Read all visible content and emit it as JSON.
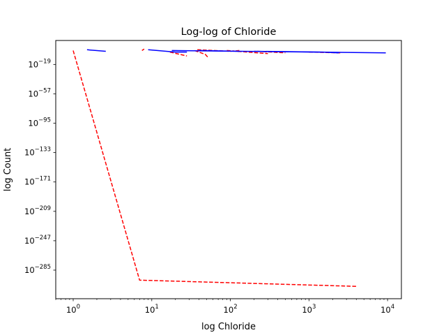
{
  "chart_data": {
    "type": "line",
    "title": "Log-log of Chloride",
    "xlabel": "log Chloride",
    "ylabel": "log Count",
    "xscale": "log",
    "yscale": "log",
    "xlim": [
      0.6,
      15000
    ],
    "ylim_exp": [
      -322,
      12
    ],
    "grid": false,
    "legend": "none",
    "x_ticks": [
      {
        "value": 1,
        "base": "10",
        "exp": "0"
      },
      {
        "value": 10,
        "base": "10",
        "exp": "1"
      },
      {
        "value": 100,
        "base": "10",
        "exp": "2"
      },
      {
        "value": 1000,
        "base": "10",
        "exp": "3"
      },
      {
        "value": 10000,
        "base": "10",
        "exp": "4"
      }
    ],
    "y_ticks": [
      {
        "exp_value": -19,
        "base": "10",
        "exp": "−19"
      },
      {
        "exp_value": -57,
        "base": "10",
        "exp": "−57"
      },
      {
        "exp_value": -95,
        "base": "10",
        "exp": "−95"
      },
      {
        "exp_value": -133,
        "base": "10",
        "exp": "−133"
      },
      {
        "exp_value": -171,
        "base": "10",
        "exp": "−171"
      },
      {
        "exp_value": -209,
        "base": "10",
        "exp": "−209"
      },
      {
        "exp_value": -247,
        "base": "10",
        "exp": "−247"
      },
      {
        "exp_value": -285,
        "base": "10",
        "exp": "−285"
      }
    ],
    "series": [
      {
        "color": "#ff0000",
        "style": "dashed",
        "segments": [
          [
            [
              1.0,
              -1
            ],
            [
              7.0,
              -298
            ],
            [
              4000,
              -306
            ]
          ],
          [
            [
              7.5,
              -1
            ],
            [
              8.0,
              1
            ]
          ],
          [
            [
              17,
              -3
            ],
            [
              28,
              -8
            ]
          ],
          [
            [
              35,
              -1
            ],
            [
              48,
              -6
            ],
            [
              52,
              -10
            ]
          ],
          [
            [
              38,
              0
            ],
            [
              100,
              -2
            ],
            [
              130,
              -1
            ]
          ],
          [
            [
              90,
              -1
            ],
            [
              300,
              -5
            ]
          ],
          [
            [
              220,
              -2
            ],
            [
              500,
              -4
            ]
          ],
          [
            [
              1000,
              -3
            ],
            [
              2500,
              -4
            ]
          ]
        ]
      },
      {
        "color": "#0000ff",
        "style": "solid",
        "segments": [
          [
            [
              1.5,
              0
            ],
            [
              2.6,
              -2
            ]
          ],
          [
            [
              9.0,
              0
            ],
            [
              20,
              -3
            ],
            [
              28,
              -3
            ]
          ],
          [
            [
              18,
              -1
            ],
            [
              9500,
              -4
            ]
          ],
          [
            [
              40,
              -1
            ],
            [
              130,
              -2
            ]
          ],
          [
            [
              200,
              -2
            ],
            [
              1500,
              -3
            ],
            [
              2400,
              -4
            ]
          ]
        ]
      }
    ]
  }
}
